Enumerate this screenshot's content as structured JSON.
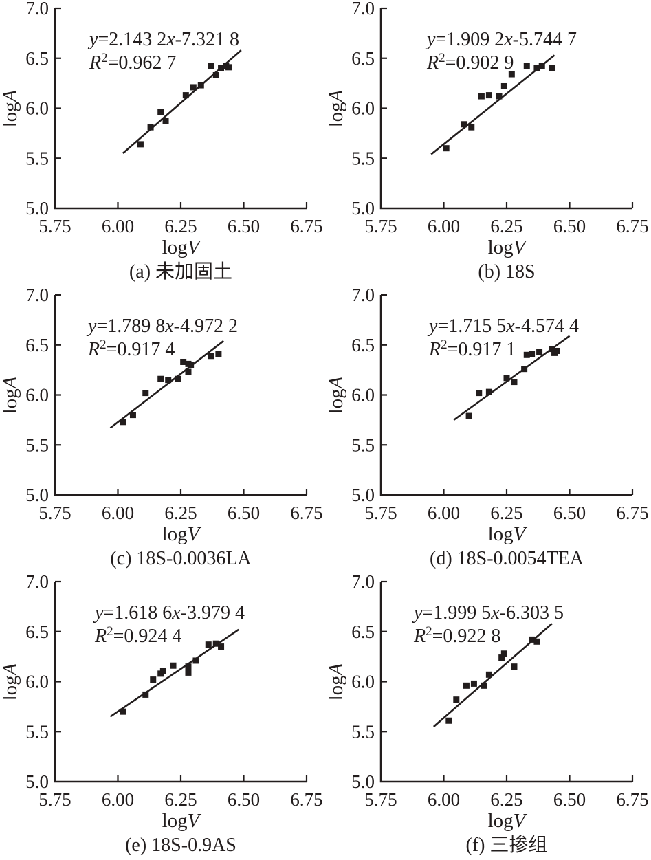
{
  "figure": {
    "background": "#ffffff",
    "ink_color": "#221d1d"
  },
  "chart_data": {
    "type": "scatter",
    "layout": "2x3-grid",
    "axes": {
      "xlabel_prefix": "log",
      "xlabel_var": "V",
      "ylabel_prefix": "log",
      "ylabel_var": "A",
      "xlim": [
        5.75,
        6.75
      ],
      "ylim": [
        5.0,
        7.0
      ],
      "xticks": {
        "values": [
          5.75,
          6.0,
          6.25,
          6.5,
          6.75
        ],
        "labels": [
          "5.75",
          "6.00",
          "6.25",
          "6.50",
          "6.75"
        ]
      },
      "yticks": {
        "values": [
          5.0,
          5.5,
          6.0,
          6.5,
          7.0
        ],
        "labels": [
          "5.0",
          "5.5",
          "6.0",
          "6.5",
          "7.0"
        ]
      },
      "grid": false,
      "legend": "none",
      "marker": "filled-black-square"
    },
    "subplots": [
      {
        "id": "a",
        "caption": "(a) 未加固土",
        "equation": {
          "lhs": "y",
          "slope_text": "=2.143 2",
          "x_var": "x",
          "intercept_text": "-7.321 8",
          "r_var": "R",
          "r_exp": "2",
          "r_value_text": "=0.962 7"
        },
        "fit_line": {
          "x1": 6.02,
          "y1": 5.55,
          "x2": 6.49,
          "y2": 6.58
        },
        "points": [
          [
            6.09,
            5.64
          ],
          [
            6.13,
            5.81
          ],
          [
            6.17,
            5.96
          ],
          [
            6.19,
            5.87
          ],
          [
            6.27,
            6.13
          ],
          [
            6.3,
            6.21
          ],
          [
            6.33,
            6.23
          ],
          [
            6.37,
            6.42
          ],
          [
            6.39,
            6.33
          ],
          [
            6.41,
            6.4
          ],
          [
            6.43,
            6.42
          ],
          [
            6.44,
            6.41
          ]
        ]
      },
      {
        "id": "b",
        "caption": "(b) 18S",
        "equation": {
          "lhs": "y",
          "slope_text": "=1.909 2",
          "x_var": "x",
          "intercept_text": "-5.744 7",
          "r_var": "R",
          "r_exp": "2",
          "r_value_text": "=0.902 9"
        },
        "fit_line": {
          "x1": 5.95,
          "y1": 5.54,
          "x2": 6.44,
          "y2": 6.53
        },
        "points": [
          [
            6.01,
            5.6
          ],
          [
            6.08,
            5.84
          ],
          [
            6.11,
            5.81
          ],
          [
            6.15,
            6.12
          ],
          [
            6.18,
            6.13
          ],
          [
            6.22,
            6.12
          ],
          [
            6.24,
            6.22
          ],
          [
            6.27,
            6.34
          ],
          [
            6.33,
            6.42
          ],
          [
            6.37,
            6.4
          ],
          [
            6.39,
            6.42
          ],
          [
            6.43,
            6.4
          ]
        ]
      },
      {
        "id": "c",
        "caption": "(c) 18S-0.0036LA",
        "equation": {
          "lhs": "y",
          "slope_text": "=1.789 8",
          "x_var": "x",
          "intercept_text": "-4.972 2",
          "r_var": "R",
          "r_exp": "2",
          "r_value_text": "=0.917 4"
        },
        "fit_line": {
          "x1": 5.97,
          "y1": 5.67,
          "x2": 6.42,
          "y2": 6.54
        },
        "points": [
          [
            6.02,
            5.73
          ],
          [
            6.06,
            5.8
          ],
          [
            6.11,
            6.02
          ],
          [
            6.17,
            6.16
          ],
          [
            6.2,
            6.15
          ],
          [
            6.24,
            6.16
          ],
          [
            6.26,
            6.33
          ],
          [
            6.28,
            6.31
          ],
          [
            6.29,
            6.3
          ],
          [
            6.28,
            6.23
          ],
          [
            6.37,
            6.39
          ],
          [
            6.4,
            6.41
          ]
        ]
      },
      {
        "id": "d",
        "caption": "(d) 18S-0.0054TEA",
        "equation": {
          "lhs": "y",
          "slope_text": "=1.715 5",
          "x_var": "x",
          "intercept_text": "-4.574 4",
          "r_var": "R",
          "r_exp": "2",
          "r_value_text": "=0.917 1"
        },
        "fit_line": {
          "x1": 6.04,
          "y1": 5.75,
          "x2": 6.5,
          "y2": 6.59
        },
        "points": [
          [
            6.1,
            5.79
          ],
          [
            6.14,
            6.02
          ],
          [
            6.18,
            6.03
          ],
          [
            6.25,
            6.17
          ],
          [
            6.28,
            6.13
          ],
          [
            6.32,
            6.26
          ],
          [
            6.33,
            6.4
          ],
          [
            6.35,
            6.41
          ],
          [
            6.38,
            6.43
          ],
          [
            6.43,
            6.46
          ],
          [
            6.44,
            6.42
          ],
          [
            6.45,
            6.44
          ]
        ]
      },
      {
        "id": "e",
        "caption": "(e) 18S-0.9AS",
        "equation": {
          "lhs": "y",
          "slope_text": "=1.618 6",
          "x_var": "x",
          "intercept_text": "-3.979 4",
          "r_var": "R",
          "r_exp": "2",
          "r_value_text": "=0.924 4"
        },
        "fit_line": {
          "x1": 5.97,
          "y1": 5.65,
          "x2": 6.48,
          "y2": 6.52
        },
        "points": [
          [
            6.02,
            5.7
          ],
          [
            6.11,
            5.87
          ],
          [
            6.14,
            6.02
          ],
          [
            6.17,
            6.08
          ],
          [
            6.18,
            6.11
          ],
          [
            6.22,
            6.16
          ],
          [
            6.28,
            6.15
          ],
          [
            6.28,
            6.09
          ],
          [
            6.31,
            6.21
          ],
          [
            6.36,
            6.37
          ],
          [
            6.39,
            6.38
          ],
          [
            6.41,
            6.35
          ]
        ]
      },
      {
        "id": "f",
        "caption": "(f) 三掺组",
        "equation": {
          "lhs": "y",
          "slope_text": "=1.999 5",
          "x_var": "x",
          "intercept_text": "-6.303 5",
          "r_var": "R",
          "r_exp": "2",
          "r_value_text": "=0.922 8"
        },
        "fit_line": {
          "x1": 5.96,
          "y1": 5.55,
          "x2": 6.43,
          "y2": 6.58
        },
        "points": [
          [
            6.02,
            5.61
          ],
          [
            6.05,
            5.82
          ],
          [
            6.09,
            5.96
          ],
          [
            6.12,
            5.98
          ],
          [
            6.16,
            5.96
          ],
          [
            6.18,
            6.07
          ],
          [
            6.23,
            6.24
          ],
          [
            6.24,
            6.28
          ],
          [
            6.28,
            6.15
          ],
          [
            6.35,
            6.42
          ],
          [
            6.37,
            6.4
          ]
        ]
      }
    ]
  }
}
